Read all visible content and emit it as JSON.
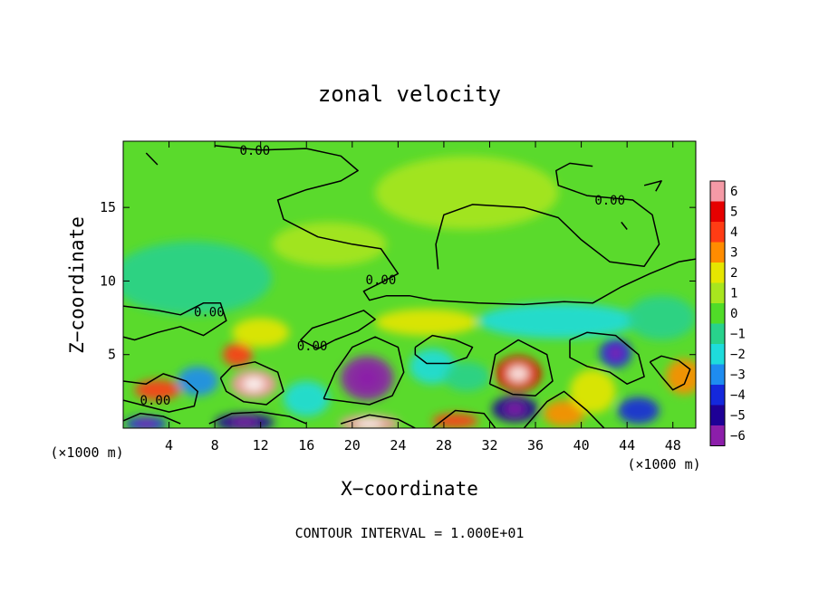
{
  "chart_data": {
    "type": "heatmap",
    "title": "zonal velocity",
    "xlabel": "X−coordinate",
    "ylabel": "Z−coordinate",
    "x_unit_left": "(×1000 m)",
    "x_unit_right": "(×1000 m)",
    "xlim": [
      0,
      50
    ],
    "ylim": [
      0,
      19.5
    ],
    "x_ticks": [
      4,
      8,
      12,
      16,
      20,
      24,
      28,
      32,
      36,
      40,
      44,
      48
    ],
    "y_ticks": [
      5,
      10,
      15
    ],
    "colorbar": {
      "levels": [
        6,
        5,
        4,
        3,
        2,
        1,
        0,
        -1,
        -2,
        -3,
        -4,
        -5,
        -6
      ],
      "labels": [
        "6",
        "5",
        "4",
        "3",
        "2",
        "1",
        "0",
        "−1",
        "−2",
        "−3",
        "−4",
        "−5",
        "−6"
      ],
      "colors": [
        "#f59aa6",
        "#e60000",
        "#ff3c14",
        "#ff8c00",
        "#e6e600",
        "#a8e61e",
        "#50dc28",
        "#28d28c",
        "#1edcdc",
        "#1e8cf0",
        "#1428dc",
        "#1e0096",
        "#8c1eaa"
      ]
    },
    "contour_labels": [
      {
        "text": "0.00",
        "x": 11.5,
        "y": 18.9
      },
      {
        "text": "0.00",
        "x": 42.5,
        "y": 15.5
      },
      {
        "text": "0.00",
        "x": 7.5,
        "y": 7.9
      },
      {
        "text": "0.00",
        "x": 16.5,
        "y": 5.6
      },
      {
        "text": "0.00",
        "x": 22.5,
        "y": 10.1
      },
      {
        "text": "0.00",
        "x": 2.8,
        "y": 1.9
      }
    ],
    "blobs": [
      {
        "x": 3,
        "y": 2.6,
        "v": 3.5,
        "sx": 2.0,
        "sy": 0.7
      },
      {
        "x": 11.4,
        "y": 3.0,
        "v": 5.6,
        "sx": 2.0,
        "sy": 1.0
      },
      {
        "x": 10.0,
        "y": 5.0,
        "v": 3.5,
        "sx": 1.3,
        "sy": 0.8
      },
      {
        "x": 21.3,
        "y": 3.4,
        "v": -5.6,
        "sx": 2.3,
        "sy": 1.5
      },
      {
        "x": 34.5,
        "y": 3.7,
        "v": 5.2,
        "sx": 2.0,
        "sy": 1.2
      },
      {
        "x": 34.2,
        "y": 1.3,
        "v": -4.6,
        "sx": 2.0,
        "sy": 0.9
      },
      {
        "x": 43.0,
        "y": 5.1,
        "v": -4.2,
        "sx": 1.4,
        "sy": 1.0
      },
      {
        "x": 45.0,
        "y": 1.2,
        "v": -3.8,
        "sx": 1.8,
        "sy": 0.9
      },
      {
        "x": 49.0,
        "y": 3.5,
        "v": 3.2,
        "sx": 1.6,
        "sy": 1.2
      },
      {
        "x": 10.6,
        "y": 0.4,
        "v": -4.8,
        "sx": 2.6,
        "sy": 0.6
      },
      {
        "x": 2.0,
        "y": 0.3,
        "v": -4.5,
        "sx": 1.8,
        "sy": 0.5
      },
      {
        "x": 21.5,
        "y": 0.3,
        "v": 5.5,
        "sx": 2.6,
        "sy": 0.6
      },
      {
        "x": 29.0,
        "y": 0.5,
        "v": 3.5,
        "sx": 2.0,
        "sy": 0.5
      },
      {
        "x": 38.5,
        "y": 1.0,
        "v": 3.0,
        "sx": 1.8,
        "sy": 0.9
      },
      {
        "x": 26.5,
        "y": 7.2,
        "v": 2.3,
        "sx": 4.5,
        "sy": 0.9
      },
      {
        "x": 38.0,
        "y": 7.3,
        "v": -1.7,
        "sx": 7.0,
        "sy": 1.2
      },
      {
        "x": 6.0,
        "y": 10.2,
        "v": -1.5,
        "sx": 7.0,
        "sy": 2.5
      },
      {
        "x": 6.5,
        "y": 3.2,
        "v": -2.8,
        "sx": 1.8,
        "sy": 1.0
      },
      {
        "x": 16.0,
        "y": 2.0,
        "v": -2.0,
        "sx": 2.0,
        "sy": 1.2
      },
      {
        "x": 27.0,
        "y": 4.2,
        "v": -2.5,
        "sx": 2.0,
        "sy": 1.2
      },
      {
        "x": 41.0,
        "y": 2.5,
        "v": 2.2,
        "sx": 2.0,
        "sy": 1.5
      },
      {
        "x": 30.0,
        "y": 3.5,
        "v": -1.5,
        "sx": 2.0,
        "sy": 1.0
      },
      {
        "x": 47.0,
        "y": 7.5,
        "v": -1.5,
        "sx": 3.0,
        "sy": 1.5
      },
      {
        "x": 18.0,
        "y": 12.5,
        "v": 0.8,
        "sx": 5.0,
        "sy": 1.5
      },
      {
        "x": 30.0,
        "y": 16.0,
        "v": 0.6,
        "sx": 8.0,
        "sy": 2.5
      },
      {
        "x": 12.0,
        "y": 6.5,
        "v": 1.6,
        "sx": 2.5,
        "sy": 1.0
      }
    ],
    "contour_paths": [
      [
        [
          8.0,
          19.2
        ],
        [
          12.0,
          18.9
        ],
        [
          16.0,
          19.0
        ],
        [
          19.0,
          18.5
        ],
        [
          20.5,
          17.5
        ],
        [
          19.0,
          16.8
        ],
        [
          16.0,
          16.2
        ],
        [
          13.5,
          15.5
        ],
        [
          14.0,
          14.2
        ],
        [
          17.0,
          13.0
        ],
        [
          20.0,
          12.5
        ],
        [
          22.5,
          12.2
        ],
        [
          24.0,
          10.5
        ],
        [
          22.8,
          10.0
        ],
        [
          21.0,
          9.3
        ],
        [
          21.5,
          8.7
        ],
        [
          23.0,
          9.0
        ],
        [
          25.0,
          9.0
        ],
        [
          27.0,
          8.7
        ],
        [
          31.0,
          8.5
        ],
        [
          35.0,
          8.4
        ],
        [
          38.5,
          8.6
        ],
        [
          41.0,
          8.5
        ],
        [
          43.5,
          9.6
        ],
        [
          46.0,
          10.5
        ],
        [
          48.5,
          11.3
        ],
        [
          50.0,
          11.5
        ]
      ],
      [
        [
          27.5,
          10.8
        ],
        [
          27.3,
          12.5
        ],
        [
          28.0,
          14.5
        ],
        [
          30.5,
          15.2
        ],
        [
          35.0,
          15.0
        ],
        [
          38.0,
          14.3
        ],
        [
          40.0,
          12.8
        ],
        [
          42.5,
          11.3
        ],
        [
          45.5,
          11.0
        ],
        [
          46.8,
          12.5
        ],
        [
          46.2,
          14.5
        ],
        [
          44.5,
          15.5
        ],
        [
          40.5,
          15.8
        ],
        [
          38.0,
          16.5
        ],
        [
          37.8,
          17.5
        ],
        [
          39.0,
          18.0
        ],
        [
          41.0,
          17.8
        ]
      ],
      [
        [
          0.0,
          8.3
        ],
        [
          3.0,
          8.0
        ],
        [
          5.0,
          7.7
        ],
        [
          7.0,
          8.5
        ],
        [
          8.5,
          8.5
        ],
        [
          9.0,
          7.3
        ],
        [
          7.0,
          6.3
        ],
        [
          5.0,
          6.9
        ],
        [
          3.0,
          6.5
        ],
        [
          1.0,
          6.0
        ],
        [
          0.0,
          6.2
        ]
      ],
      [
        [
          0.0,
          3.2
        ],
        [
          2.0,
          3.0
        ],
        [
          3.5,
          3.7
        ],
        [
          5.5,
          3.2
        ],
        [
          6.5,
          2.5
        ],
        [
          6.2,
          1.5
        ],
        [
          4.0,
          1.1
        ],
        [
          2.0,
          1.5
        ],
        [
          0.0,
          1.9
        ]
      ],
      [
        [
          8.5,
          3.4
        ],
        [
          9.5,
          4.2
        ],
        [
          11.5,
          4.5
        ],
        [
          13.5,
          3.8
        ],
        [
          14.0,
          2.5
        ],
        [
          12.5,
          1.6
        ],
        [
          10.5,
          1.8
        ],
        [
          9.0,
          2.5
        ],
        [
          8.5,
          3.4
        ]
      ],
      [
        [
          17.5,
          2.0
        ],
        [
          18.5,
          3.8
        ],
        [
          20.0,
          5.5
        ],
        [
          22.0,
          6.2
        ],
        [
          24.0,
          5.5
        ],
        [
          24.5,
          3.8
        ],
        [
          23.5,
          2.2
        ],
        [
          21.5,
          1.6
        ],
        [
          19.5,
          1.8
        ],
        [
          17.5,
          2.0
        ]
      ],
      [
        [
          32.0,
          3.0
        ],
        [
          32.5,
          5.0
        ],
        [
          34.5,
          6.0
        ],
        [
          37.0,
          5.0
        ],
        [
          37.5,
          3.2
        ],
        [
          36.0,
          2.2
        ],
        [
          34.0,
          2.3
        ],
        [
          32.0,
          3.0
        ]
      ],
      [
        [
          39.0,
          6.0
        ],
        [
          40.5,
          6.5
        ],
        [
          43.0,
          6.3
        ],
        [
          45.0,
          5.0
        ],
        [
          45.5,
          3.5
        ],
        [
          44.0,
          3.0
        ],
        [
          42.5,
          3.8
        ],
        [
          40.5,
          4.2
        ],
        [
          39.0,
          4.8
        ],
        [
          39.0,
          6.0
        ]
      ],
      [
        [
          17.0,
          5.4
        ],
        [
          18.5,
          6.0
        ],
        [
          20.5,
          6.6
        ],
        [
          22.0,
          7.4
        ],
        [
          21.0,
          8.0
        ],
        [
          18.5,
          7.3
        ],
        [
          16.5,
          6.8
        ],
        [
          15.5,
          6.0
        ],
        [
          17.0,
          5.4
        ]
      ],
      [
        [
          25.5,
          5.5
        ],
        [
          27.0,
          6.3
        ],
        [
          29.0,
          6.0
        ],
        [
          30.5,
          5.5
        ],
        [
          30.0,
          4.8
        ],
        [
          28.5,
          4.4
        ],
        [
          26.5,
          4.4
        ],
        [
          25.5,
          5.0
        ],
        [
          25.5,
          5.5
        ]
      ],
      [
        [
          0.0,
          0.5
        ],
        [
          1.5,
          1.0
        ],
        [
          3.5,
          0.8
        ],
        [
          5.0,
          0.3
        ]
      ],
      [
        [
          7.5,
          0.3
        ],
        [
          9.5,
          1.0
        ],
        [
          12.0,
          1.1
        ],
        [
          14.5,
          0.8
        ],
        [
          16.0,
          0.3
        ]
      ],
      [
        [
          19.0,
          0.3
        ],
        [
          21.5,
          0.9
        ],
        [
          24.0,
          0.6
        ],
        [
          25.5,
          0.0
        ]
      ],
      [
        [
          27.0,
          0.0
        ],
        [
          29.0,
          1.2
        ],
        [
          31.5,
          1.0
        ],
        [
          32.5,
          0.0
        ]
      ],
      [
        [
          35.0,
          0.0
        ],
        [
          37.0,
          1.8
        ],
        [
          38.5,
          2.5
        ],
        [
          40.5,
          1.2
        ],
        [
          42.0,
          0.0
        ]
      ],
      [
        [
          46.0,
          4.5
        ],
        [
          47.0,
          3.5
        ],
        [
          48.0,
          2.6
        ],
        [
          49.0,
          3.0
        ],
        [
          49.5,
          4.0
        ],
        [
          48.5,
          4.6
        ],
        [
          47.0,
          4.9
        ],
        [
          46.0,
          4.5
        ]
      ],
      [
        [
          3.0,
          17.9
        ],
        [
          2.0,
          18.7
        ]
      ],
      [
        [
          43.5,
          14.0
        ],
        [
          44.0,
          13.5
        ]
      ],
      [
        [
          45.5,
          16.5
        ],
        [
          47.0,
          16.8
        ],
        [
          46.5,
          16.1
        ]
      ]
    ],
    "footer": "CONTOUR INTERVAL = 1.000E+01"
  }
}
